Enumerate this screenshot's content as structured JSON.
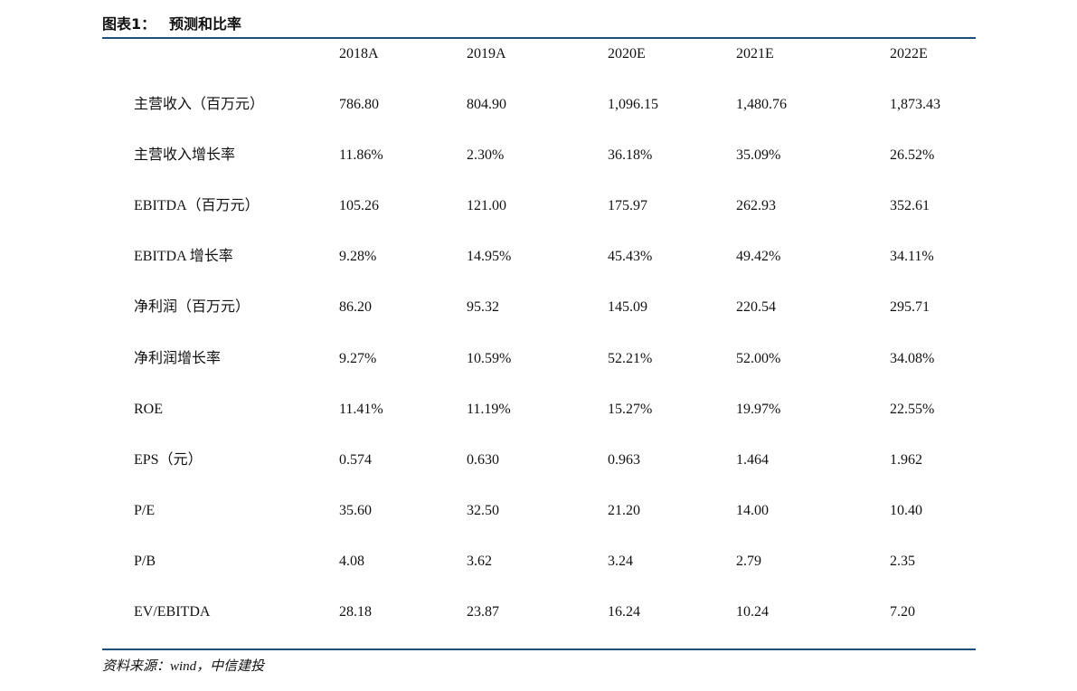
{
  "header": {
    "label": "图表1：",
    "title": "预测和比率"
  },
  "table": {
    "columns": [
      "2018A",
      "2019A",
      "2020E",
      "2021E",
      "2022E"
    ],
    "rows": [
      [
        "主营收入（百万元）",
        "786.80",
        "804.90",
        "1,096.15",
        "1,480.76",
        "1,873.43"
      ],
      [
        "主营收入增长率",
        "11.86%",
        "2.30%",
        "36.18%",
        "35.09%",
        "26.52%"
      ],
      [
        "EBITDA（百万元）",
        "105.26",
        "121.00",
        "175.97",
        "262.93",
        "352.61"
      ],
      [
        "EBITDA 增长率",
        "9.28%",
        "14.95%",
        "45.43%",
        "49.42%",
        "34.11%"
      ],
      [
        "净利润（百万元）",
        "86.20",
        "95.32",
        "145.09",
        "220.54",
        "295.71"
      ],
      [
        "净利润增长率",
        "9.27%",
        "10.59%",
        "52.21%",
        "52.00%",
        "34.08%"
      ],
      [
        "ROE",
        "11.41%",
        "11.19%",
        "15.27%",
        "19.97%",
        "22.55%"
      ],
      [
        "EPS（元）",
        "0.574",
        "0.630",
        "0.963",
        "1.464",
        "1.962"
      ],
      [
        "P/E",
        "35.60",
        "32.50",
        "21.20",
        "14.00",
        "10.40"
      ],
      [
        "P/B",
        "4.08",
        "3.62",
        "3.24",
        "2.79",
        "2.35"
      ],
      [
        "EV/EBITDA",
        "28.18",
        "23.87",
        "16.24",
        "10.24",
        "7.20"
      ]
    ]
  },
  "source": "资料来源：wind，中信建投"
}
